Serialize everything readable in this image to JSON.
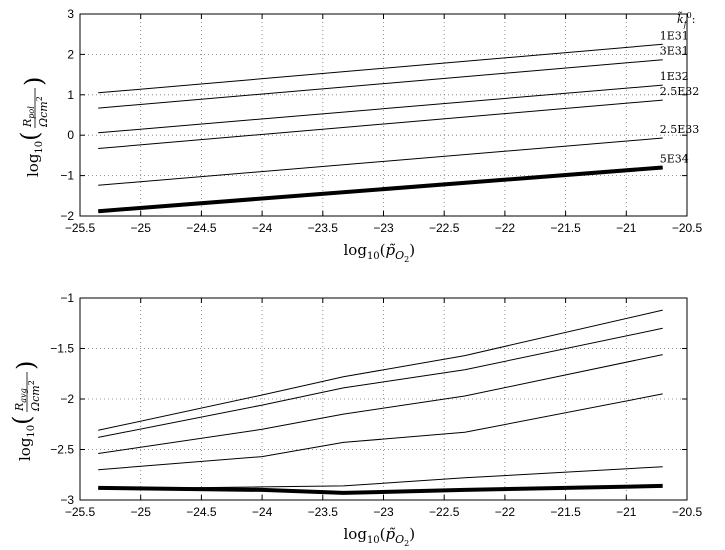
{
  "chart_data": [
    {
      "type": "line",
      "title": "",
      "xlabel": "log10(p̃O2)",
      "ylabel": "log10(Rpol / Ωcm²)",
      "xlim": [
        -25.5,
        -20.5
      ],
      "ylim": [
        -2,
        3
      ],
      "xticks": [
        "-25.5",
        "-25",
        "-24.5",
        "-24",
        "-23.5",
        "-23",
        "-22.5",
        "-22",
        "-21.5",
        "-21",
        "-20.5"
      ],
      "yticks": [
        "-2",
        "-1",
        "0",
        "1",
        "2",
        "3"
      ],
      "grid": true,
      "legend_title": "k̃f⁰:",
      "series": [
        {
          "name": "1E31",
          "x": [
            -25.35,
            -20.7
          ],
          "y": [
            1.05,
            2.25
          ]
        },
        {
          "name": "3E31",
          "x": [
            -25.35,
            -20.7
          ],
          "y": [
            0.67,
            1.87
          ]
        },
        {
          "name": "1E32",
          "x": [
            -25.35,
            -20.7
          ],
          "y": [
            0.06,
            1.24
          ]
        },
        {
          "name": "2.5E32",
          "x": [
            -25.35,
            -20.7
          ],
          "y": [
            -0.33,
            0.87
          ]
        },
        {
          "name": "2.5E33",
          "x": [
            -25.35,
            -20.7
          ],
          "y": [
            -1.24,
            -0.07
          ]
        },
        {
          "name": "5E34",
          "x": [
            -25.35,
            -20.7
          ],
          "y": [
            -1.88,
            -0.8
          ],
          "bold": true
        }
      ]
    },
    {
      "type": "line",
      "title": "",
      "xlabel": "log10(p̃O2)",
      "ylabel": "log10(Ravg / Ωcm²)",
      "xlim": [
        -25.5,
        -20.5
      ],
      "ylim": [
        -3,
        -1
      ],
      "xticks": [
        "-25.5",
        "-25",
        "-24.5",
        "-24",
        "-23.5",
        "-23",
        "-22.5",
        "-22",
        "-21.5",
        "-21",
        "-20.5"
      ],
      "yticks": [
        "-3",
        "-2.5",
        "-2",
        "-1.5",
        "-1"
      ],
      "grid": true,
      "series": [
        {
          "x": [
            -25.35,
            -24.0,
            -23.33,
            -22.33,
            -20.7
          ],
          "y": [
            -2.31,
            -1.96,
            -1.78,
            -1.57,
            -1.12
          ]
        },
        {
          "x": [
            -25.35,
            -24.0,
            -23.33,
            -22.33,
            -20.7
          ],
          "y": [
            -2.38,
            -2.06,
            -1.89,
            -1.71,
            -1.3
          ]
        },
        {
          "x": [
            -25.35,
            -24.0,
            -23.33,
            -22.33,
            -20.7
          ],
          "y": [
            -2.54,
            -2.3,
            -2.15,
            -1.97,
            -1.56
          ]
        },
        {
          "x": [
            -25.35,
            -24.0,
            -23.33,
            -22.33,
            -20.7
          ],
          "y": [
            -2.7,
            -2.57,
            -2.43,
            -2.33,
            -1.95
          ]
        },
        {
          "x": [
            -25.35,
            -24.0,
            -23.33,
            -22.33,
            -20.7
          ],
          "y": [
            -2.89,
            -2.87,
            -2.86,
            -2.78,
            -2.67
          ]
        },
        {
          "x": [
            -25.35,
            -24.0,
            -23.33,
            -22.33,
            -20.7
          ],
          "y": [
            -2.88,
            -2.9,
            -2.93,
            -2.9,
            -2.86
          ],
          "bold": true
        }
      ]
    }
  ]
}
